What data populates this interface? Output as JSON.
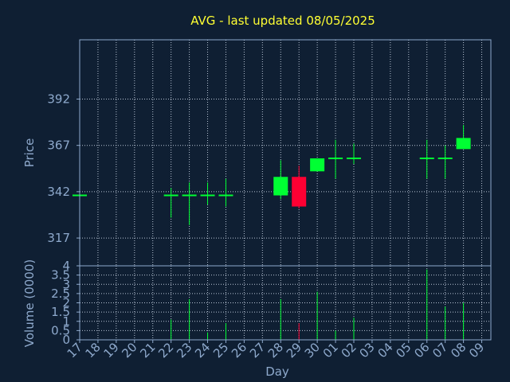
{
  "chart_data": {
    "type": "candlestick",
    "title": "AVG - last updated 08/05/2025",
    "xlabel": "Day",
    "price_panel": {
      "ylabel": "Price",
      "yticks": [
        317,
        342,
        367,
        392
      ],
      "ylim": [
        302,
        424
      ]
    },
    "volume_panel": {
      "ylabel": "Volume (0000)",
      "yticks": [
        0,
        0.5,
        1,
        1.5,
        2,
        2.5,
        3,
        3.5,
        4
      ],
      "ytick_labels": [
        "0",
        "0.5",
        "1",
        "1.5",
        "2",
        "2.5",
        "3",
        "3.5",
        "4"
      ],
      "ylim": [
        0,
        4
      ]
    },
    "grid": true,
    "colors": {
      "background": "#0f1f33",
      "up": "#00ff33",
      "down": "#ff0033",
      "title": "#ffff33",
      "axis": "#8ea9cc"
    },
    "x_tick_labels": [
      "17",
      "18",
      "19",
      "20",
      "21",
      "22",
      "23",
      "24",
      "25",
      "26",
      "27",
      "28",
      "29",
      "30",
      "01",
      "02",
      "03",
      "04",
      "05",
      "06",
      "07",
      "08",
      "09"
    ],
    "candles": [
      {
        "x": "17",
        "open": 340,
        "high": 340,
        "low": 340,
        "close": 340,
        "volume": 0
      },
      {
        "x": "22",
        "open": 340,
        "high": 344,
        "low": 328,
        "close": 340,
        "volume": 1.1
      },
      {
        "x": "23",
        "open": 340,
        "high": 347,
        "low": 324,
        "close": 340,
        "volume": 2.2
      },
      {
        "x": "24",
        "open": 340,
        "high": 347,
        "low": 335,
        "close": 340,
        "volume": 0.4
      },
      {
        "x": "25",
        "open": 340,
        "high": 349,
        "low": 334,
        "close": 340,
        "volume": 0.9
      },
      {
        "x": "28",
        "open": 340,
        "high": 359,
        "low": 338,
        "close": 350,
        "volume": 2.2
      },
      {
        "x": "29",
        "open": 350,
        "high": 356,
        "low": 333,
        "close": 334,
        "volume": 0.9
      },
      {
        "x": "30",
        "open": 353,
        "high": 360,
        "low": 353,
        "close": 360,
        "volume": 2.6
      },
      {
        "x": "01",
        "open": 360,
        "high": 370,
        "low": 349,
        "close": 360,
        "volume": 0.5
      },
      {
        "x": "02",
        "open": 360,
        "high": 368,
        "low": 357,
        "close": 360,
        "volume": 1.2
      },
      {
        "x": "06",
        "open": 360,
        "high": 370,
        "low": 349,
        "close": 360,
        "volume": 3.8
      },
      {
        "x": "07",
        "open": 360,
        "high": 367,
        "low": 349,
        "close": 360,
        "volume": 1.8
      },
      {
        "x": "08",
        "open": 365,
        "high": 378,
        "low": 365,
        "close": 371,
        "volume": 2.0
      }
    ]
  }
}
